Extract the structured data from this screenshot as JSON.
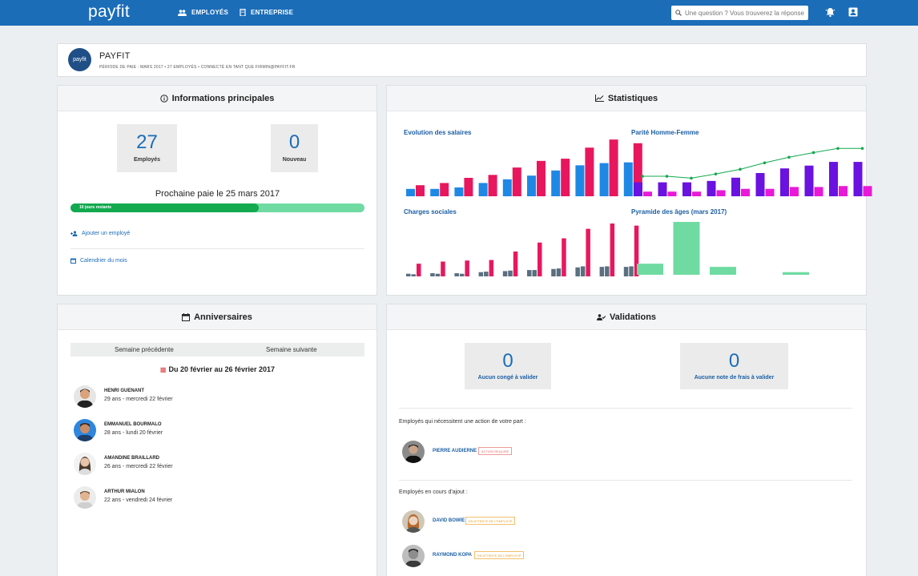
{
  "topbar": {
    "brand": "payfit",
    "nav": [
      {
        "label": "EMPLOYÉS",
        "icon": "people-icon"
      },
      {
        "label": "ENTREPRISE",
        "icon": "building-icon"
      }
    ],
    "search_placeholder": "Une question ? Vous trouverez la réponse",
    "colors": {
      "bar": "#1b6db8"
    }
  },
  "company": {
    "logo_text": "payfit",
    "name": "PAYFIT",
    "meta": "PÉRIODE DE PAIE : MARS 2017  •  27 EMPLOYÉS  •  CONNECTÉ EN TANT QUE FIRMIN@PAYFIT.FR"
  },
  "infos": {
    "title": "Informations principales",
    "employees_count": "27",
    "employees_label": "Employés",
    "new_count": "0",
    "new_label": "Nouveau",
    "next_pay": "Prochaine paie le 25 mars 2017",
    "progress_label": "10 jours restants",
    "progress_fraction": 0.64,
    "add_employee": "Ajouter un employé",
    "calendar": "Calendrier du mois"
  },
  "stats": {
    "title": "Statistiques",
    "colors": {
      "blue": "#1e88e5",
      "pink": "#e8175d",
      "purple": "#6a12e0",
      "magenta": "#e81ad8",
      "green": "#12a94f",
      "slate": "#5a6f80",
      "teal": "#6fdba2"
    }
  },
  "chart_data": [
    {
      "type": "bar",
      "title": "Evolution des salaires",
      "series": [
        {
          "values": [
            1,
            1,
            1.2,
            1.8,
            2.3,
            2.8,
            3.5,
            4.2,
            4.5,
            4.6
          ]
        },
        {
          "values": [
            1.5,
            1.8,
            2.5,
            2.9,
            3.9,
            4.8,
            5.1,
            6.6,
            7.7,
            7.2
          ]
        }
      ]
    },
    {
      "type": "bar",
      "title": "Parité Homme-Femme",
      "series": [
        {
          "values": [
            3,
            3,
            3,
            3.3,
            4,
            5,
            6,
            6.6,
            7.4,
            7.4
          ]
        },
        {
          "values": [
            1,
            1,
            1,
            1.3,
            1.6,
            1.6,
            2,
            2,
            2.2,
            2.2
          ]
        },
        {
          "type": "line",
          "values": [
            4.3,
            4.3,
            3.9,
            4.8,
            5.8,
            7.2,
            8.4,
            9.4,
            10.3,
            10.3
          ]
        }
      ]
    },
    {
      "type": "bar",
      "title": "Charges sociales",
      "series": [
        {
          "values": [
            0.5,
            0.6,
            0.6,
            0.8,
            1,
            1.2,
            1.4,
            1.7,
            1.8,
            1.8
          ]
        },
        {
          "values": [
            0.4,
            0.5,
            0.5,
            0.9,
            1.1,
            1.2,
            1.5,
            1.9,
            1.9,
            1.9
          ]
        },
        {
          "values": [
            2.4,
            2.8,
            3,
            3.1,
            4.7,
            6.4,
            7.2,
            9,
            10,
            9.6
          ]
        }
      ]
    },
    {
      "type": "bar",
      "title": "Pyramide des âges (mars 2017)",
      "values": [
        2.1,
        10,
        1.5,
        0,
        0.5
      ]
    }
  ],
  "anniversaires": {
    "title": "Anniversaires",
    "prev_week": "Semaine précédente",
    "next_week": "Semaine suivante",
    "period": "Du 20 février au 26 février 2017",
    "people": [
      {
        "name": "HENRI GUENANT",
        "info": "29 ans - mercredi 22 février"
      },
      {
        "name": "EMMANUEL BOURMALO",
        "info": "28 ans - lundi 20 février"
      },
      {
        "name": "AMANDINE BRAILLARD",
        "info": "26 ans - mercredi 22 février"
      },
      {
        "name": "ARTHUR MIALON",
        "info": "22 ans - vendredi 24 février"
      }
    ]
  },
  "validations": {
    "title": "Validations",
    "conges_count": "0",
    "conges_label": "Aucun congé à valider",
    "frais_count": "0",
    "frais_label": "Aucune note de frais à valider",
    "action_section": "Employés qui nécessitent une action de votre part :",
    "action_people": [
      {
        "name": "PIERRE AUDIERNE",
        "tag": "ACTION REQUISE"
      }
    ],
    "adding_section": "Employés en cours d'ajout :",
    "adding_people": [
      {
        "name": "DAVID BOWIE",
        "tag": "EN ATTENTE DE L'EMPLOYÉ"
      },
      {
        "name": "RAYMOND KOPA",
        "tag": "EN ATTENTE DE L'EMPLOYÉ"
      }
    ]
  }
}
